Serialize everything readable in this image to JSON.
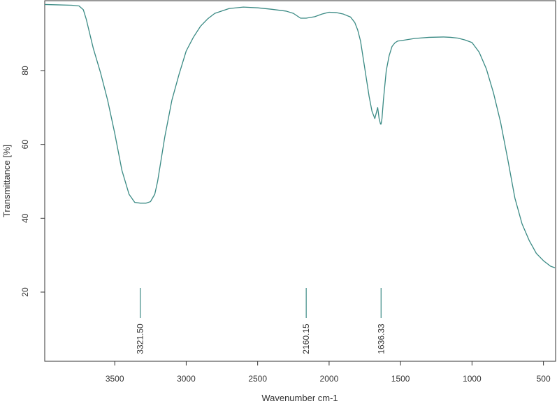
{
  "chart_data": {
    "type": "line",
    "title": "",
    "xlabel": "Wavenumber cm-1",
    "ylabel": "Transmittance [%]",
    "xlim": [
      4000,
      400
    ],
    "x_reversed": true,
    "ylim": [
      0,
      100
    ],
    "grid": false,
    "legend": "none",
    "line_color": "#3a8a84",
    "x_ticks": [
      {
        "value": 3500,
        "label": "3500"
      },
      {
        "value": 3000,
        "label": "3000"
      },
      {
        "value": 2500,
        "label": "2500"
      },
      {
        "value": 2000,
        "label": "2000"
      },
      {
        "value": 1500,
        "label": "1500"
      },
      {
        "value": 1000,
        "label": "1000"
      },
      {
        "value": 500,
        "label": "500"
      }
    ],
    "y_ticks": [
      {
        "value": 20,
        "label": "20"
      },
      {
        "value": 40,
        "label": "40"
      },
      {
        "value": 60,
        "label": "60"
      },
      {
        "value": 80,
        "label": "80"
      }
    ],
    "series": [
      {
        "x": [
          4000,
          3900,
          3800,
          3750,
          3720,
          3700,
          3650,
          3600,
          3550,
          3500,
          3450,
          3400,
          3360,
          3321.5,
          3280,
          3250,
          3220,
          3200,
          3150,
          3100,
          3050,
          3000,
          2950,
          2900,
          2850,
          2800,
          2700,
          2600,
          2500,
          2400,
          2300,
          2250,
          2200,
          2160.15,
          2100,
          2050,
          2000,
          1950,
          1900,
          1850,
          1820,
          1800,
          1780,
          1760,
          1740,
          1720,
          1700,
          1680,
          1660,
          1650,
          1640,
          1636.33,
          1630,
          1620,
          1600,
          1580,
          1560,
          1540,
          1520,
          1500,
          1450,
          1400,
          1300,
          1200,
          1150,
          1100,
          1050,
          1000,
          950,
          900,
          850,
          800,
          750,
          700,
          650,
          600,
          550,
          500,
          450,
          420
        ],
        "y": [
          97.9,
          97.8,
          97.7,
          97.5,
          96.5,
          94,
          86,
          79.5,
          72,
          63,
          53,
          46.5,
          44.3,
          44.1,
          44.1,
          44.5,
          46.5,
          50,
          62,
          72,
          79,
          85.3,
          89,
          92,
          94,
          95.5,
          96.8,
          97.2,
          97.0,
          96.6,
          96.1,
          95.5,
          94.2,
          94.2,
          94.6,
          95.3,
          95.8,
          95.7,
          95.3,
          94.5,
          93,
          91,
          88,
          83,
          78,
          73,
          69,
          67,
          70,
          67,
          65.5,
          65.5,
          67,
          72,
          80,
          84,
          86.5,
          87.5,
          88,
          88.1,
          88.4,
          88.7,
          89,
          89.1,
          89,
          88.8,
          88.3,
          87.6,
          85,
          80.5,
          74,
          66,
          56,
          45.5,
          38.5,
          34,
          30.5,
          28.5,
          27,
          26.6
        ]
      }
    ],
    "annotations": [
      {
        "x": 3321.5,
        "label": "3321.50",
        "y_from": 20,
        "y_to": 12
      },
      {
        "x": 2160.15,
        "label": "2160.15",
        "y_from": 20,
        "y_to": 12
      },
      {
        "x": 1636.33,
        "label": "1636.33",
        "y_from": 20,
        "y_to": 12
      }
    ]
  }
}
